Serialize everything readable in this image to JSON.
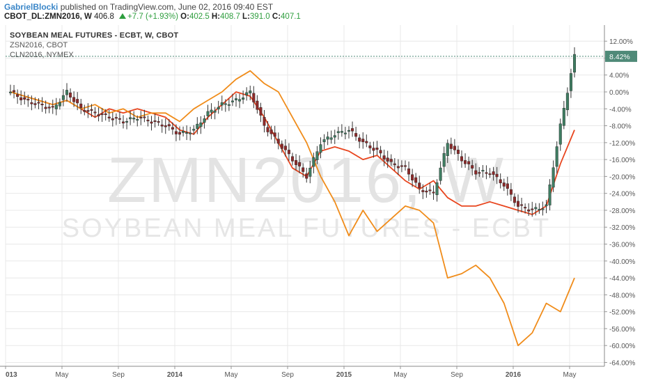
{
  "header": {
    "user": "GabrielBlocki",
    "published_text": " published on TradingView.com, June 02, 2016 09:40 EST",
    "symbol": "CBOT_DL:ZMN2016, W",
    "last": "406.8",
    "change": "+7.7 (+1.93%)",
    "open_label": "O:",
    "open": "402.5",
    "high_label": "H:",
    "high": "408.7",
    "low_label": "L:",
    "low": "391.0",
    "close_label": "C:",
    "close": "407.1"
  },
  "legend": {
    "main": "SOYBEAN MEAL FUTURES - ECBT, W, CBOT",
    "compare1": "ZSN2016, CBOT",
    "compare2": "CLN2016, NYMEX"
  },
  "watermark": {
    "line1": "ZMN2016, W",
    "line2": "SOYBEAN MEAL FUTURES - ECBT"
  },
  "colors": {
    "candle_up": "#3f7d62",
    "candle_down": "#8c2a2a",
    "zsn_line": "#e8451e",
    "cln_line": "#f08c1a",
    "current_label_bg": "#4f8a78",
    "grid": "#e8e8e8"
  },
  "chart_data": {
    "type": "line",
    "title": "SOYBEAN MEAL FUTURES - ECBT, W, CBOT",
    "y_unit": "percent change",
    "ylim": [
      -64,
      12
    ],
    "y_ticks": [
      "12.00%",
      "8.00%",
      "4.00%",
      "0.00%",
      "-4.00%",
      "-8.00%",
      "-12.00%",
      "-16.00%",
      "-20.00%",
      "-24.00%",
      "-28.00%",
      "-32.00%",
      "-36.00%",
      "-40.00%",
      "-44.00%",
      "-48.00%",
      "-52.00%",
      "-56.00%",
      "-60.00%",
      "-64.00%"
    ],
    "x_ticks": [
      {
        "label": "013",
        "date": "2013-01",
        "bold": true
      },
      {
        "label": "May",
        "date": "2013-05",
        "bold": false
      },
      {
        "label": "Sep",
        "date": "2013-09",
        "bold": false
      },
      {
        "label": "2014",
        "date": "2014-01",
        "bold": true
      },
      {
        "label": "May",
        "date": "2014-05",
        "bold": false
      },
      {
        "label": "Sep",
        "date": "2014-09",
        "bold": false
      },
      {
        "label": "2015",
        "date": "2015-01",
        "bold": true
      },
      {
        "label": "May",
        "date": "2015-05",
        "bold": false
      },
      {
        "label": "Sep",
        "date": "2015-09",
        "bold": false
      },
      {
        "label": "2016",
        "date": "2016-01",
        "bold": true
      },
      {
        "label": "May",
        "date": "2016-05",
        "bold": false
      }
    ],
    "grid": true,
    "current_value_label": "8.42%",
    "current_value": 8.42,
    "series": [
      {
        "name": "ZSN2016, CBOT",
        "x": [
          "2013-01",
          "2013-02",
          "2013-03",
          "2013-04",
          "2013-05",
          "2013-06",
          "2013-07",
          "2013-08",
          "2013-09",
          "2013-10",
          "2013-11",
          "2013-12",
          "2014-01",
          "2014-02",
          "2014-03",
          "2014-04",
          "2014-05",
          "2014-06",
          "2014-07",
          "2014-08",
          "2014-09",
          "2014-10",
          "2014-11",
          "2014-12",
          "2015-01",
          "2015-02",
          "2015-03",
          "2015-04",
          "2015-05",
          "2015-06",
          "2015-07",
          "2015-08",
          "2015-09",
          "2015-10",
          "2015-11",
          "2015-12",
          "2016-01",
          "2016-02",
          "2016-03",
          "2016-04",
          "2016-05"
        ],
        "values": [
          0,
          -1,
          -2,
          -3,
          -2,
          -4,
          -6,
          -4,
          -5,
          -4,
          -5,
          -6,
          -9,
          -10,
          -6,
          -3,
          0,
          -1,
          -6,
          -12,
          -18,
          -20,
          -14,
          -13,
          -14,
          -16,
          -15,
          -18,
          -21,
          -23,
          -21,
          -25,
          -27,
          -27,
          -26,
          -27,
          -28,
          -29,
          -27,
          -17,
          -9
        ]
      },
      {
        "name": "CLN2016, NYMEX",
        "x": [
          "2013-01",
          "2013-02",
          "2013-03",
          "2013-04",
          "2013-05",
          "2013-06",
          "2013-07",
          "2013-08",
          "2013-09",
          "2013-10",
          "2013-11",
          "2013-12",
          "2014-01",
          "2014-02",
          "2014-03",
          "2014-04",
          "2014-05",
          "2014-06",
          "2014-07",
          "2014-08",
          "2014-09",
          "2014-10",
          "2014-11",
          "2014-12",
          "2015-01",
          "2015-02",
          "2015-03",
          "2015-04",
          "2015-05",
          "2015-06",
          "2015-07",
          "2015-08",
          "2015-09",
          "2015-10",
          "2015-11",
          "2015-12",
          "2016-01",
          "2016-02",
          "2016-03",
          "2016-04",
          "2016-05"
        ],
        "values": [
          0,
          -1,
          -2,
          -3,
          -2,
          -4,
          -3,
          -5,
          -4,
          -6,
          -5,
          -5,
          -7,
          -4,
          -2,
          0,
          3,
          5,
          2,
          0,
          -6,
          -12,
          -20,
          -26,
          -34,
          -28,
          -33,
          -30,
          -27,
          -28,
          -31,
          -44,
          -43,
          -41,
          -44,
          -50,
          -60,
          -57,
          -50,
          -52,
          -44
        ]
      },
      {
        "name": "SOYBEAN MEAL FUTURES - ECBT, W, CBOT",
        "x": [
          "2013-01",
          "2013-02",
          "2013-03",
          "2013-04",
          "2013-05",
          "2013-06",
          "2013-07",
          "2013-08",
          "2013-09",
          "2013-10",
          "2013-11",
          "2013-12",
          "2014-01",
          "2014-02",
          "2014-03",
          "2014-04",
          "2014-05",
          "2014-06",
          "2014-07",
          "2014-08",
          "2014-09",
          "2014-10",
          "2014-11",
          "2014-12",
          "2015-01",
          "2015-02",
          "2015-03",
          "2015-04",
          "2015-05",
          "2015-06",
          "2015-07",
          "2015-08",
          "2015-09",
          "2015-10",
          "2015-11",
          "2015-12",
          "2016-01",
          "2016-02",
          "2016-03",
          "2016-04",
          "2016-05"
        ],
        "values": [
          0,
          -2,
          -3,
          -4,
          0,
          -4,
          -5,
          -6,
          -7,
          -6,
          -7,
          -8,
          -10,
          -9,
          -5,
          -3,
          -2,
          0,
          -8,
          -12,
          -16,
          -20,
          -12,
          -10,
          -9,
          -12,
          -14,
          -17,
          -18,
          -23,
          -24,
          -12,
          -16,
          -19,
          -19,
          -22,
          -27,
          -28,
          -27,
          -8,
          8.42
        ]
      }
    ]
  }
}
